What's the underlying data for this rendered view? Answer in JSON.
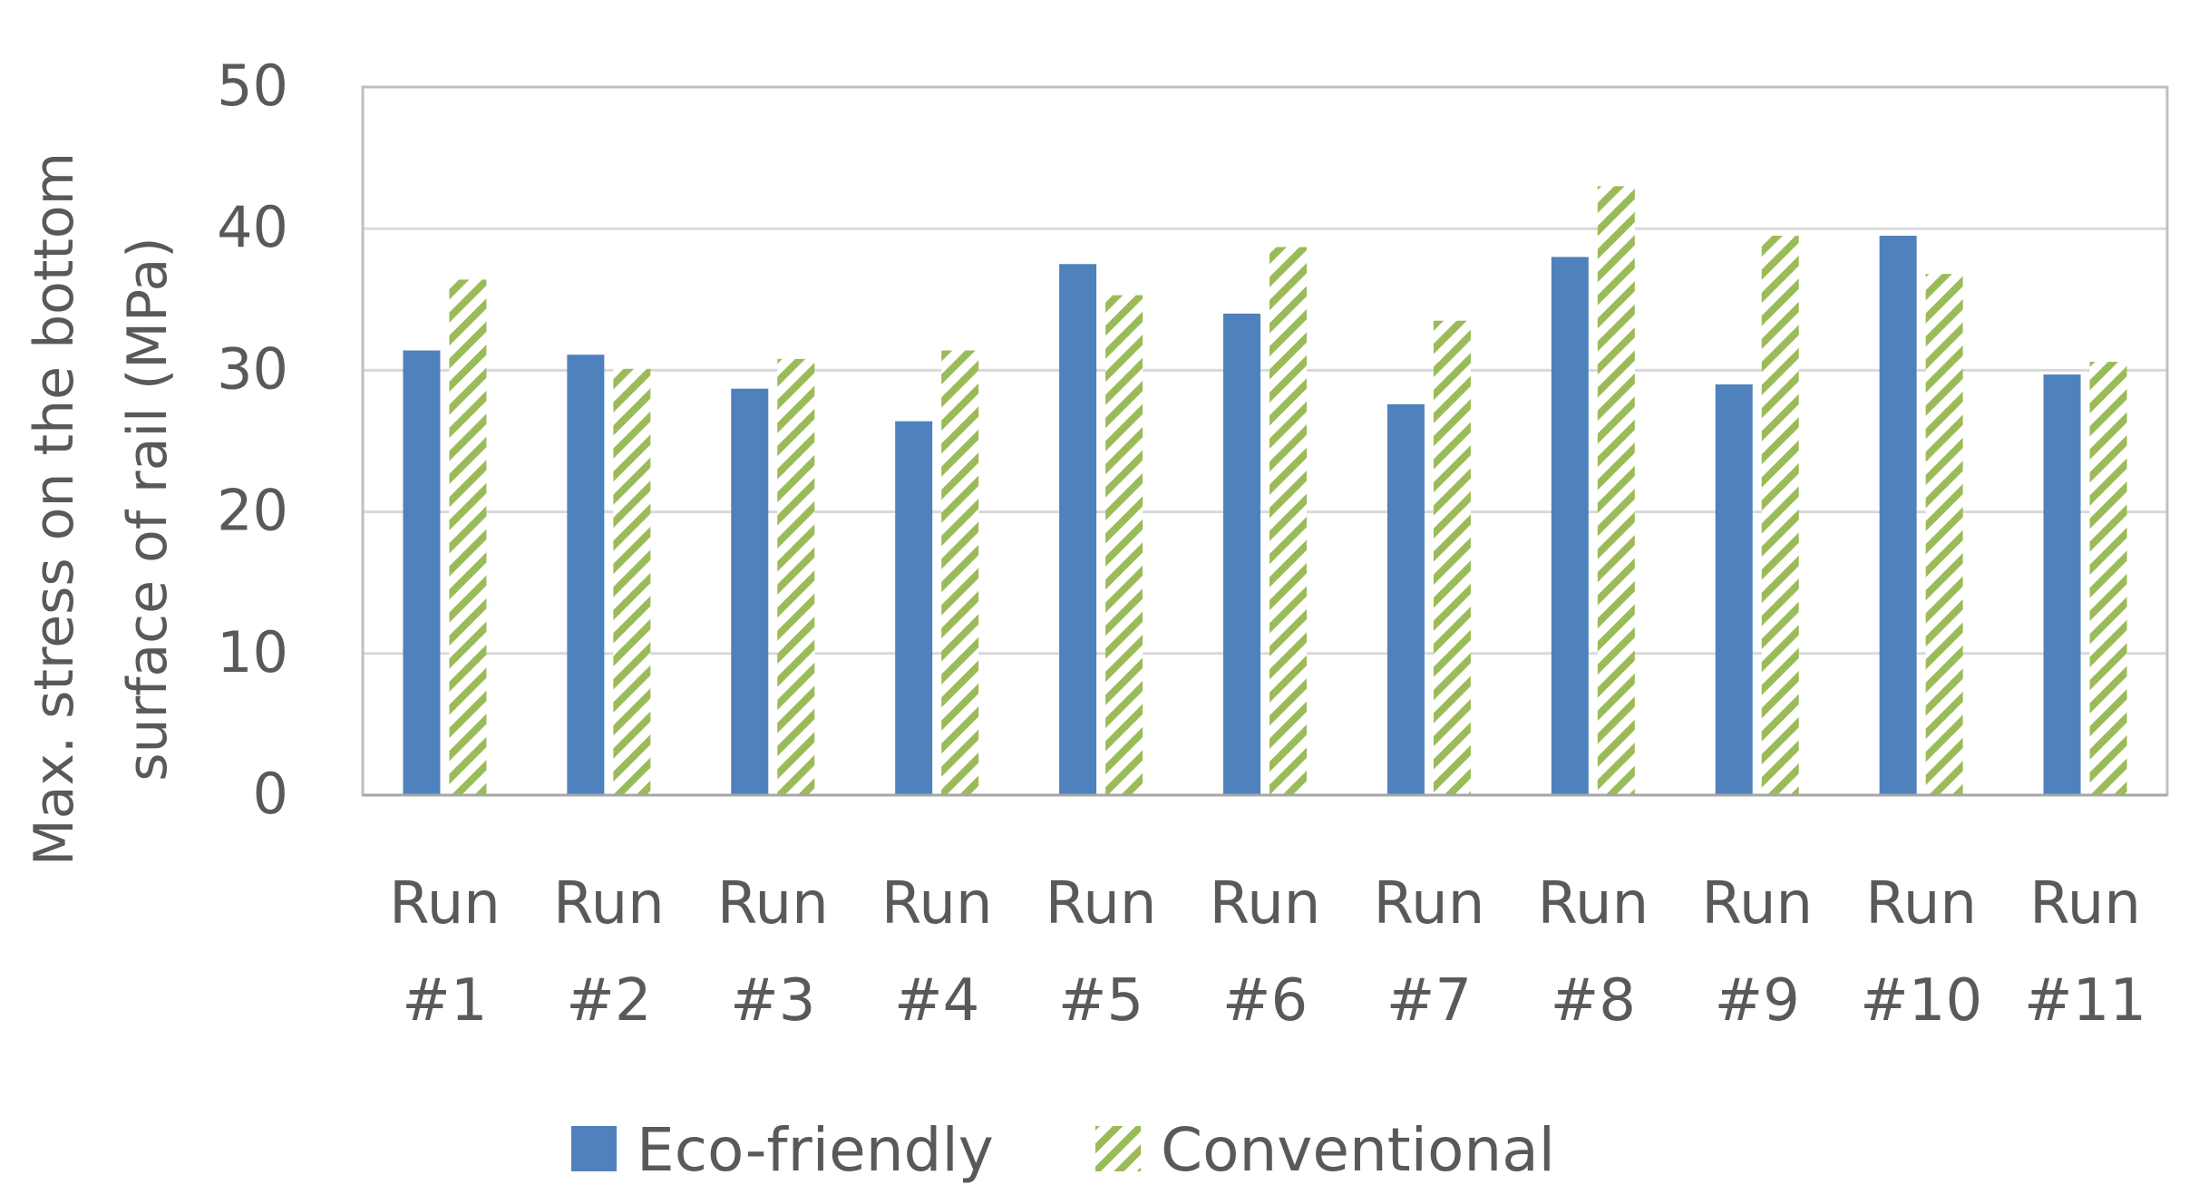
{
  "colors": {
    "eco": "#4f81bd",
    "conventional": "#9bbb59",
    "gridline": "#d9d9d9",
    "plot_border": "#bfbfbf",
    "axis_text": "#595959"
  },
  "legend": {
    "position": "bottom",
    "items": [
      {
        "label": "Eco-friendly",
        "icon": "solid-blue-swatch"
      },
      {
        "label": "Conventional",
        "icon": "green-hatched-swatch"
      }
    ]
  },
  "chart_data": {
    "type": "bar",
    "title": "",
    "ylabel_lines": [
      "Max. stress on the bottom",
      "surface of rail (MPa)"
    ],
    "xlabel": "",
    "ylim": [
      0,
      50
    ],
    "yticks": [
      0,
      10,
      20,
      30,
      40,
      50
    ],
    "grid": true,
    "categories": [
      [
        "Run",
        "#1"
      ],
      [
        "Run",
        "#2"
      ],
      [
        "Run",
        "#3"
      ],
      [
        "Run",
        "#4"
      ],
      [
        "Run",
        "#5"
      ],
      [
        "Run",
        "#6"
      ],
      [
        "Run",
        "#7"
      ],
      [
        "Run",
        "#8"
      ],
      [
        "Run",
        "#9"
      ],
      [
        "Run",
        "#10"
      ],
      [
        "Run",
        "#11"
      ]
    ],
    "series": [
      {
        "name": "Eco-friendly",
        "pattern": "solid",
        "values": [
          31.4,
          31.1,
          28.7,
          26.4,
          37.5,
          34.0,
          27.6,
          38.0,
          29.0,
          39.5,
          29.7
        ]
      },
      {
        "name": "Conventional",
        "pattern": "hatched",
        "values": [
          36.4,
          30.1,
          30.8,
          31.4,
          35.3,
          38.7,
          33.5,
          43.0,
          39.5,
          36.8,
          30.6
        ]
      }
    ]
  }
}
